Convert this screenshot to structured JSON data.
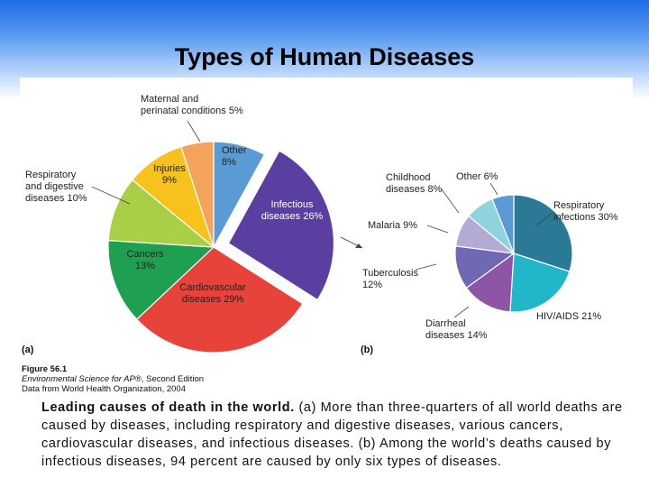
{
  "slide": {
    "title": "Types of Human Diseases"
  },
  "figure": {
    "panel_a_label": "(a)",
    "panel_b_label": "(b)",
    "figure_number": "Figure 56.1",
    "source_line1_italic": "Environmental Science for AP®",
    "source_line1_rest": ", Second Edition",
    "source_line2": "Data from World Health Organization, 2004"
  },
  "caption": {
    "bold": "Leading causes of death in the world.",
    "text": " (a) More than three-quarters of all world deaths are caused by diseases, including respiratory and digestive diseases, various cancers, cardiovascular diseases, and infectious diseases. (b) Among the world’s deaths caused by infectious diseases, 94 percent are caused by only six types of diseases."
  },
  "chart_data": [
    {
      "type": "pie",
      "panel": "(a)",
      "slices": [
        {
          "name": "Other",
          "value": 8,
          "color": "#5b9bd5",
          "label": [
            "Other",
            "8%"
          ]
        },
        {
          "name": "Infectious diseases",
          "value": 26,
          "color": "#5b3fa0",
          "exploded": true,
          "label": [
            "Infectious",
            "diseases 26%"
          ]
        },
        {
          "name": "Cardiovascular diseases",
          "value": 29,
          "color": "#e8433a",
          "label": [
            "Cardiovascular",
            "diseases 29%"
          ]
        },
        {
          "name": "Cancers",
          "value": 13,
          "color": "#1fa050",
          "label": [
            "Cancers",
            "13%"
          ]
        },
        {
          "name": "Respiratory and digestive diseases",
          "value": 10,
          "color": "#a8cf45",
          "label": [
            "Respiratory",
            "and digestive",
            "diseases 10%"
          ]
        },
        {
          "name": "Injuries",
          "value": 9,
          "color": "#f7c21b",
          "label": [
            "Injuries",
            "9%"
          ]
        },
        {
          "name": "Maternal and perinatal conditions",
          "value": 5,
          "color": "#f4a35b",
          "label": [
            "Maternal and",
            "perinatal conditions 5%"
          ]
        }
      ]
    },
    {
      "type": "pie",
      "panel": "(b)",
      "slices": [
        {
          "name": "Respiratory infections",
          "value": 30,
          "color": "#2a7a96",
          "label": [
            "Respiratory",
            "infections 30%"
          ]
        },
        {
          "name": "HIV/AIDS",
          "value": 21,
          "color": "#21b6c8",
          "label": [
            "HIV/AIDS 21%"
          ]
        },
        {
          "name": "Diarrheal diseases",
          "value": 14,
          "color": "#8e54a6",
          "label": [
            "Diarrheal",
            "diseases 14%"
          ]
        },
        {
          "name": "Tuberculosis",
          "value": 12,
          "color": "#6f68b3",
          "label": [
            "Tuberculosis",
            "12%"
          ]
        },
        {
          "name": "Malaria",
          "value": 9,
          "color": "#b3aad6",
          "label": [
            "Malaria 9%"
          ]
        },
        {
          "name": "Childhood diseases",
          "value": 8,
          "color": "#8fd4dc",
          "label": [
            "Childhood",
            "diseases 8%"
          ]
        },
        {
          "name": "Other",
          "value": 6,
          "color": "#5b9bd5",
          "label": [
            "Other 6%"
          ]
        }
      ]
    }
  ]
}
